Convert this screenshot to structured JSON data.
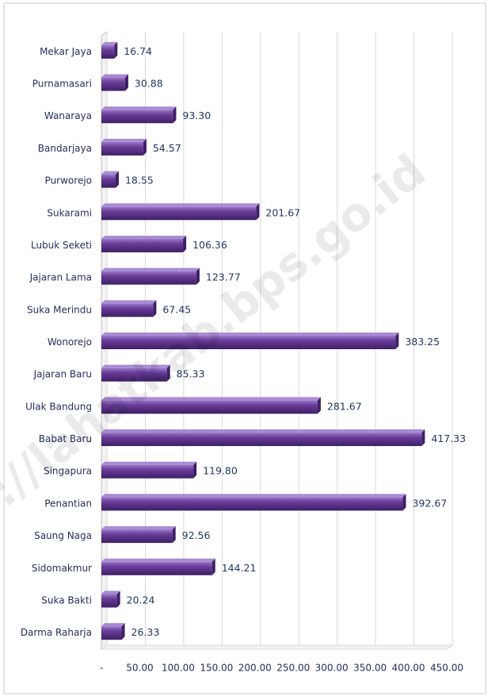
{
  "chart_data": {
    "type": "hbar",
    "categories": [
      "Mekar Jaya",
      "Purnamasari",
      "Wanaraya",
      "Bandarjaya",
      "Purworejo",
      "Sukarami",
      "Lubuk Seketi",
      "Jajaran Lama",
      "Suka Merindu",
      "Wonorejo",
      "Jajaran Baru",
      "Ulak Bandung",
      "Babat Baru",
      "Singapura",
      "Penantian",
      "Saung Naga",
      "Sidomakmur",
      "Suka Bakti",
      "Darma Raharja"
    ],
    "values": [
      16.74,
      30.88,
      93.3,
      54.57,
      18.55,
      201.67,
      106.36,
      123.77,
      67.45,
      383.25,
      85.33,
      281.67,
      417.33,
      119.8,
      392.67,
      92.56,
      144.21,
      20.24,
      26.33
    ],
    "value_labels": [
      "16.74",
      "30.88",
      "93.30",
      "54.57",
      "18.55",
      "201.67",
      "106.36",
      "123.77",
      "67.45",
      "383.25",
      "85.33",
      "281.67",
      "417.33",
      "119.80",
      "392.67",
      "92.56",
      "144.21",
      "20.24",
      "26.33"
    ],
    "color": "#6a3d9a",
    "xlim": [
      0,
      450
    ],
    "xticks": [
      {
        "value": 0,
        "label": "-"
      },
      {
        "value": 50,
        "label": "50.00"
      },
      {
        "value": 100,
        "label": "100.00"
      },
      {
        "value": 150,
        "label": "150.00"
      },
      {
        "value": 200,
        "label": "200.00"
      },
      {
        "value": 250,
        "label": "250.00"
      },
      {
        "value": 300,
        "label": "300.00"
      },
      {
        "value": 350,
        "label": "350.00"
      },
      {
        "value": 400,
        "label": "400.00"
      },
      {
        "value": 450,
        "label": "450.00"
      }
    ],
    "grid": true,
    "annotation": "s://lahatkab.bps.go.id"
  }
}
